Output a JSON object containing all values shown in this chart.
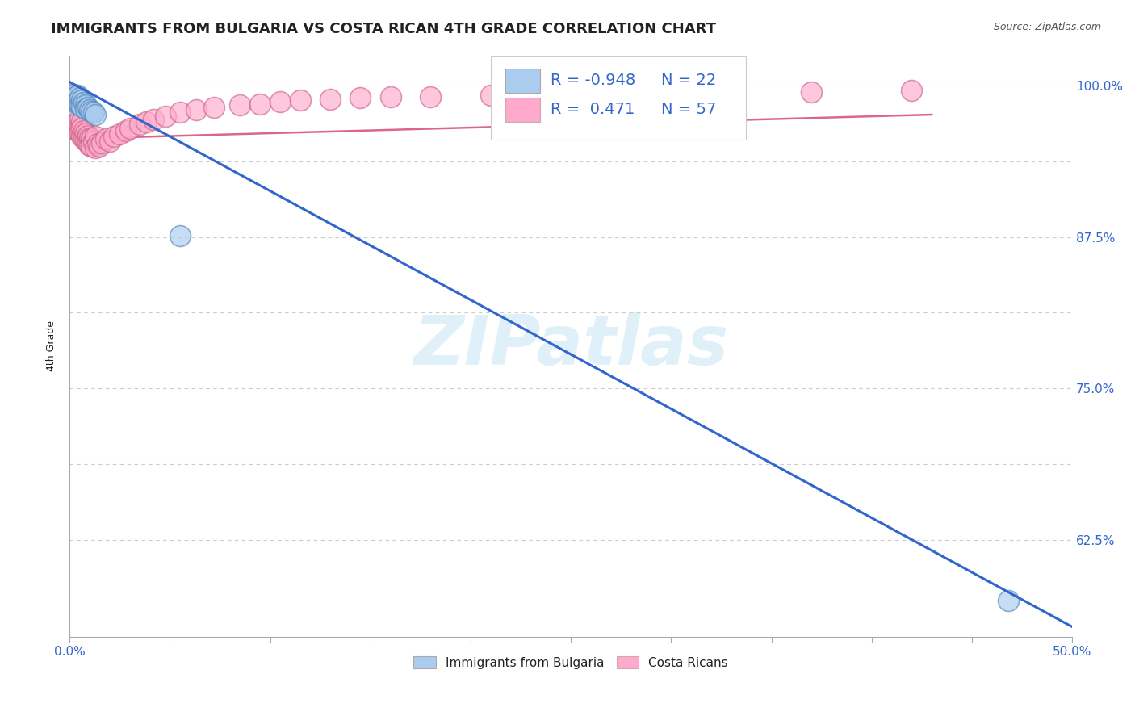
{
  "title": "IMMIGRANTS FROM BULGARIA VS COSTA RICAN 4TH GRADE CORRELATION CHART",
  "source": "Source: ZipAtlas.com",
  "ylabel": "4th Grade",
  "xlim": [
    0.0,
    0.5
  ],
  "ylim": [
    0.545,
    1.025
  ],
  "blue_color": "#aaccee",
  "blue_edge_color": "#5588bb",
  "pink_color": "#ffaacc",
  "pink_edge_color": "#cc6688",
  "blue_line_color": "#3366cc",
  "pink_line_color": "#dd6688",
  "watermark": "ZIPatlas",
  "legend_R_blue": "-0.948",
  "legend_N_blue": "22",
  "legend_R_pink": "0.471",
  "legend_N_pink": "57",
  "blue_scatter_x": [
    0.001,
    0.001,
    0.002,
    0.002,
    0.003,
    0.003,
    0.004,
    0.004,
    0.005,
    0.005,
    0.006,
    0.006,
    0.007,
    0.008,
    0.008,
    0.009,
    0.01,
    0.011,
    0.012,
    0.013,
    0.055,
    0.468
  ],
  "blue_scatter_y": [
    0.99,
    0.985,
    0.993,
    0.988,
    0.991,
    0.986,
    0.992,
    0.987,
    0.99,
    0.984,
    0.988,
    0.983,
    0.986,
    0.984,
    0.981,
    0.982,
    0.98,
    0.979,
    0.978,
    0.976,
    0.876,
    0.575
  ],
  "pink_scatter_x": [
    0.001,
    0.001,
    0.002,
    0.002,
    0.003,
    0.003,
    0.003,
    0.004,
    0.004,
    0.005,
    0.005,
    0.005,
    0.006,
    0.006,
    0.006,
    0.007,
    0.007,
    0.008,
    0.008,
    0.009,
    0.009,
    0.01,
    0.01,
    0.011,
    0.011,
    0.012,
    0.013,
    0.013,
    0.014,
    0.015,
    0.016,
    0.018,
    0.02,
    0.022,
    0.025,
    0.028,
    0.03,
    0.035,
    0.038,
    0.042,
    0.048,
    0.055,
    0.063,
    0.072,
    0.085,
    0.095,
    0.105,
    0.115,
    0.13,
    0.145,
    0.16,
    0.18,
    0.21,
    0.25,
    0.305,
    0.37,
    0.42
  ],
  "pink_scatter_y": [
    0.973,
    0.967,
    0.98,
    0.975,
    0.972,
    0.968,
    0.964,
    0.976,
    0.97,
    0.966,
    0.973,
    0.962,
    0.97,
    0.965,
    0.958,
    0.963,
    0.957,
    0.961,
    0.955,
    0.959,
    0.953,
    0.957,
    0.951,
    0.956,
    0.95,
    0.954,
    0.958,
    0.949,
    0.952,
    0.95,
    0.953,
    0.956,
    0.954,
    0.958,
    0.96,
    0.963,
    0.965,
    0.968,
    0.97,
    0.972,
    0.975,
    0.978,
    0.98,
    0.982,
    0.984,
    0.985,
    0.987,
    0.988,
    0.989,
    0.99,
    0.991,
    0.991,
    0.992,
    0.993,
    0.994,
    0.995,
    0.996
  ],
  "blue_line_x": [
    0.0,
    0.5
  ],
  "blue_line_y": [
    1.003,
    0.553
  ],
  "pink_line_x": [
    0.0,
    0.43
  ],
  "pink_line_y": [
    0.956,
    0.976
  ],
  "grid_color": "#cccccc",
  "grid_y_values": [
    0.625,
    0.6875,
    0.75,
    0.8125,
    0.875,
    0.9375,
    1.0
  ],
  "y_tick_positions": [
    0.625,
    0.6875,
    0.75,
    0.8125,
    0.875,
    0.9375,
    1.0
  ],
  "y_tick_labels": [
    "62.5%",
    "",
    "75.0%",
    "",
    "87.5%",
    "",
    "100.0%"
  ],
  "x_tick_positions": [
    0.0,
    0.05,
    0.1,
    0.15,
    0.2,
    0.25,
    0.3,
    0.35,
    0.4,
    0.45,
    0.5
  ],
  "x_tick_labels": [
    "0.0%",
    "",
    "",
    "",
    "",
    "",
    "",
    "",
    "",
    "",
    "50.0%"
  ],
  "background_color": "#ffffff",
  "title_fontsize": 13,
  "axis_label_fontsize": 9,
  "tick_fontsize": 11,
  "legend_fontsize": 14,
  "text_color_blue": "#3366cc",
  "text_color_dark": "#222222"
}
